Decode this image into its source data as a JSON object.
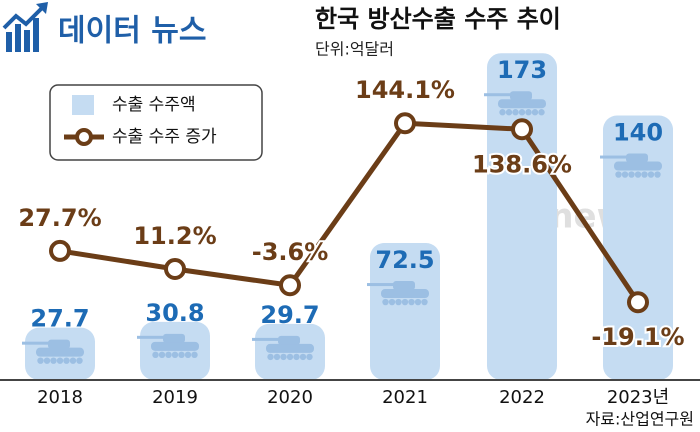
{
  "logo": "데이터 뉴스",
  "watermark": "etnews",
  "chart_data": {
    "type": "bar-line",
    "title": "한국 방산수출 수주 추이",
    "subtitle": "단위:억달러",
    "source": "자료:산업연구원",
    "categories": [
      "2018",
      "2019",
      "2020",
      "2021",
      "2022",
      "2023년"
    ],
    "series": [
      {
        "name": "수출 수주액",
        "type": "bar",
        "color": "#c5dcf2",
        "label_color": "#1d6bb5",
        "values": [
          27.7,
          30.8,
          29.7,
          72.5,
          173,
          140
        ]
      },
      {
        "name": "수출 수주 증가",
        "type": "line",
        "axis": "y2",
        "color": "#6b3d17",
        "values": [
          27.7,
          11.2,
          -3.6,
          144.1,
          138.6,
          -19.1
        ],
        "value_labels": [
          "27.7%",
          "11.2%",
          "-3.6%",
          "144.1%",
          "138.6%",
          "-19.1%"
        ]
      }
    ],
    "ylim": [
      0,
      180
    ],
    "y2lim": [
      -90,
      220
    ]
  }
}
